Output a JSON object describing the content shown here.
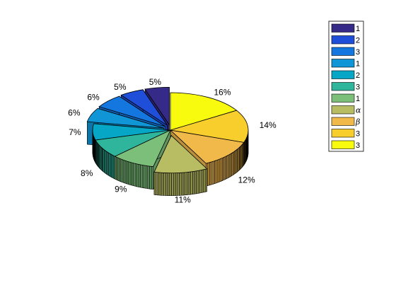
{
  "chart_data": {
    "type": "pie",
    "style": "3d-exploded",
    "values": [
      5,
      5,
      6,
      6,
      7,
      8,
      9,
      11,
      12,
      14,
      16
    ],
    "labels": [
      "5%",
      "5%",
      "6%",
      "6%",
      "7%",
      "8%",
      "9%",
      "11%",
      "12%",
      "14%",
      "16%"
    ],
    "exploded": [
      true,
      true,
      true,
      true,
      false,
      false,
      false,
      true,
      false,
      false,
      false
    ],
    "legend": {
      "position": "top-right",
      "entries": [
        "1",
        "2",
        "3",
        "1",
        "2",
        "3",
        "1",
        "α",
        "β",
        "3",
        "3"
      ]
    },
    "colors": [
      "#352A87",
      "#1F4FD8",
      "#1477E0",
      "#1096D6",
      "#06A7C6",
      "#2FB59C",
      "#7CBF7B",
      "#B8BD64",
      "#F1B94A",
      "#F8CE2C",
      "#F9FB0E"
    ]
  }
}
